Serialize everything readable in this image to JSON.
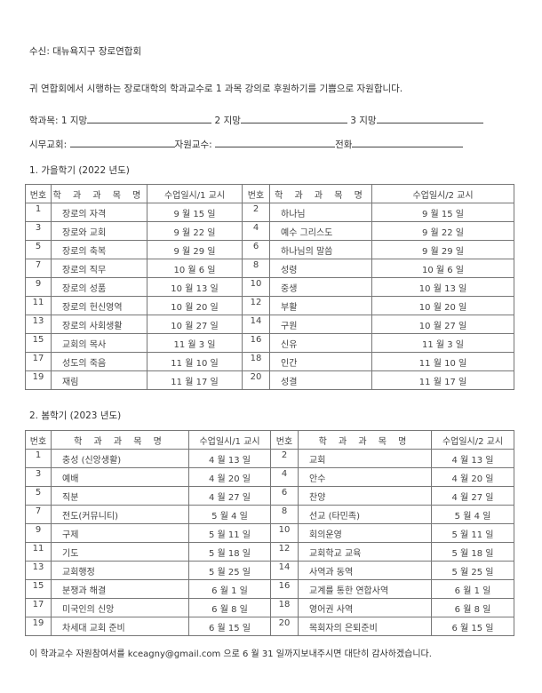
{
  "recipient": "수신:  대뉴욕지구 장로연합회",
  "intro": "귀 연합회에서 시행하는 장로대학의  학과교수로  1 과목 강의로 후원하기를 기쁨으로 자원합니다.",
  "form": {
    "subject_label": "학과목:  1 지망",
    "choice2_label": "2 지망",
    "choice3_label": "3 지망",
    "church_label": "시무교회:",
    "professor_label": "자원교수:",
    "phone_label": "전화"
  },
  "headers": {
    "num": "번호",
    "subject": "학 과 과 목 명",
    "date1": "수업일시/1 교시",
    "date2": "수업일시/2 교시"
  },
  "fall": {
    "title": "1.  가을학기 (2022 년도)",
    "rows": [
      [
        "1",
        "장로의 자격",
        "9 월 15 일",
        "2",
        "하나님",
        "9 월 15 일"
      ],
      [
        "3",
        "장로와 교회",
        "9 월 22 일",
        "4",
        "예수 그리스도",
        "9 월 22 일"
      ],
      [
        "5",
        "장로의 축복",
        "9 월 29 일",
        "6",
        "하나님의 말씀",
        "9 월 29 일"
      ],
      [
        "7",
        "장로의 직무",
        "10 월  6 일",
        "8",
        "성령",
        "10 월  6 일"
      ],
      [
        "9",
        "장로의 성품",
        "10 월 13 일",
        "10",
        "중생",
        "10 월 13 일"
      ],
      [
        "11",
        "장로의 헌신영역",
        "10 월 20 일",
        "12",
        "부활",
        "10 월 20 일"
      ],
      [
        "13",
        "장로의 사회생활",
        "10 월 27 일",
        "14",
        "구원",
        "10 월 27 일"
      ],
      [
        "15",
        "교회의 목사",
        "11 월  3 일",
        "16",
        "신유",
        "11 월  3 일"
      ],
      [
        "17",
        "성도의 죽음",
        "11 월 10 일",
        "18",
        "인간",
        "11 월 10 일"
      ],
      [
        "19",
        "재림",
        "11 월 17 일",
        "20",
        "성결",
        "11 월 17 일"
      ]
    ]
  },
  "spring": {
    "title": "2.  봄학기 (2023 년도)",
    "rows": [
      [
        "1",
        "충성 (신앙생활)",
        "4 월 13 일",
        "2",
        "교회",
        "4 월 13 일"
      ],
      [
        "3",
        "예배",
        "4 월 20 일",
        "4",
        "안수",
        "4 월 20 일"
      ],
      [
        "5",
        "직분",
        "4 월 27 일",
        "6",
        "찬양",
        "4 월 27 일"
      ],
      [
        "7",
        "전도(커뮤니티)",
        "5 월   4 일",
        "8",
        "선교 (타민족)",
        "5 월   4 일"
      ],
      [
        "9",
        "구제",
        "5 월 11 일",
        "10",
        "회의운영",
        "5 월 11 일"
      ],
      [
        "11",
        "기도",
        "5 월 18 일",
        "12",
        "교회학교 교육",
        "5 월 18 일"
      ],
      [
        "13",
        "교회행정",
        "5 월 25 일",
        "14",
        "사역과 동역",
        "5 월 25 일"
      ],
      [
        "15",
        "분쟁과 해결",
        "6 월   1 일",
        "16",
        "교계를 통한 연합사역",
        "6 월   1 일"
      ],
      [
        "17",
        "미국인의 신앙",
        "6 월   8 일",
        "18",
        "영어권 사역",
        "6 월   8 일"
      ],
      [
        "19",
        "차세대 교회 준비",
        "6 월 15 일",
        "20",
        "목회자의 은퇴준비",
        "6 월 15 일"
      ]
    ]
  },
  "footer": "이 학과교수 자원참여서를 kceagny@gmail.com  으로 6 월 31 일까지보내주시면 대단히 감사하겠습니다."
}
